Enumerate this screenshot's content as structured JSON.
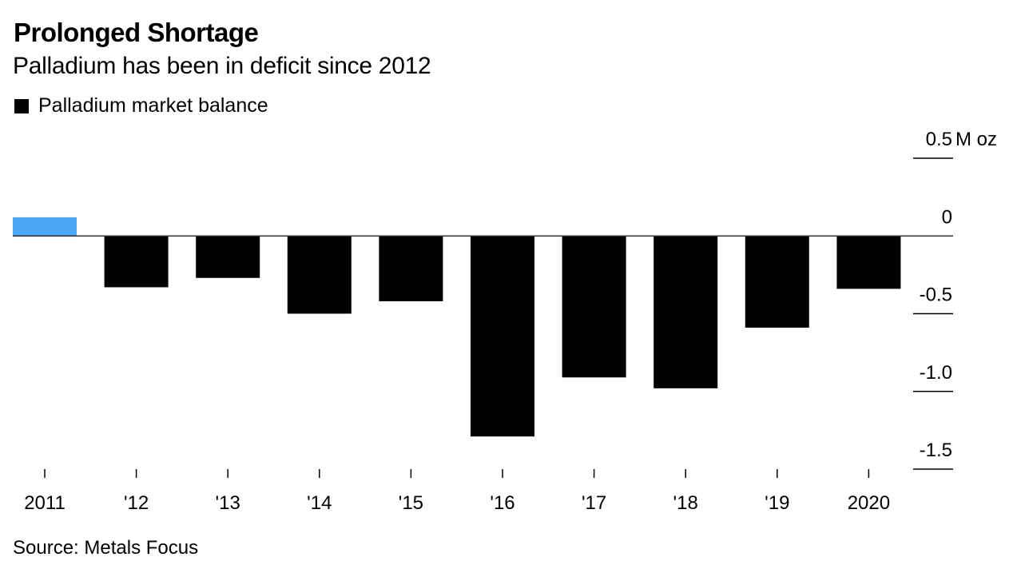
{
  "header": {
    "title": "Prolonged Shortage",
    "subtitle": "Palladium has been in deficit since 2012"
  },
  "legend": {
    "label": "Palladium market balance",
    "color": "#000000"
  },
  "footer": {
    "source": "Source: Metals Focus"
  },
  "chart_data": {
    "type": "bar",
    "title": "Prolonged Shortage",
    "subtitle": "Palladium has been in deficit since 2012",
    "xlabel": "",
    "ylabel": "M oz",
    "categories": [
      "2011",
      "'12",
      "'13",
      "'14",
      "'15",
      "'16",
      "'17",
      "'18",
      "'19",
      "2020"
    ],
    "series": [
      {
        "name": "Palladium market balance",
        "values": [
          0.12,
          -0.33,
          -0.27,
          -0.5,
          -0.42,
          -1.29,
          -0.91,
          -0.98,
          -0.59,
          -0.34
        ]
      }
    ],
    "bar_colors": {
      "positive": "#4AA8F5",
      "negative": "#000000"
    },
    "ylim": [
      -1.5,
      0.5
    ],
    "yticks": [
      0.5,
      0,
      -0.5,
      -1.0,
      -1.5
    ],
    "ytick_labels": [
      "0.5",
      "0",
      "-0.5",
      "-1.0",
      "-1.5"
    ],
    "y_unit_label": "M oz",
    "grid": false,
    "legend_position": "top-left",
    "y_axis_position": "right"
  }
}
